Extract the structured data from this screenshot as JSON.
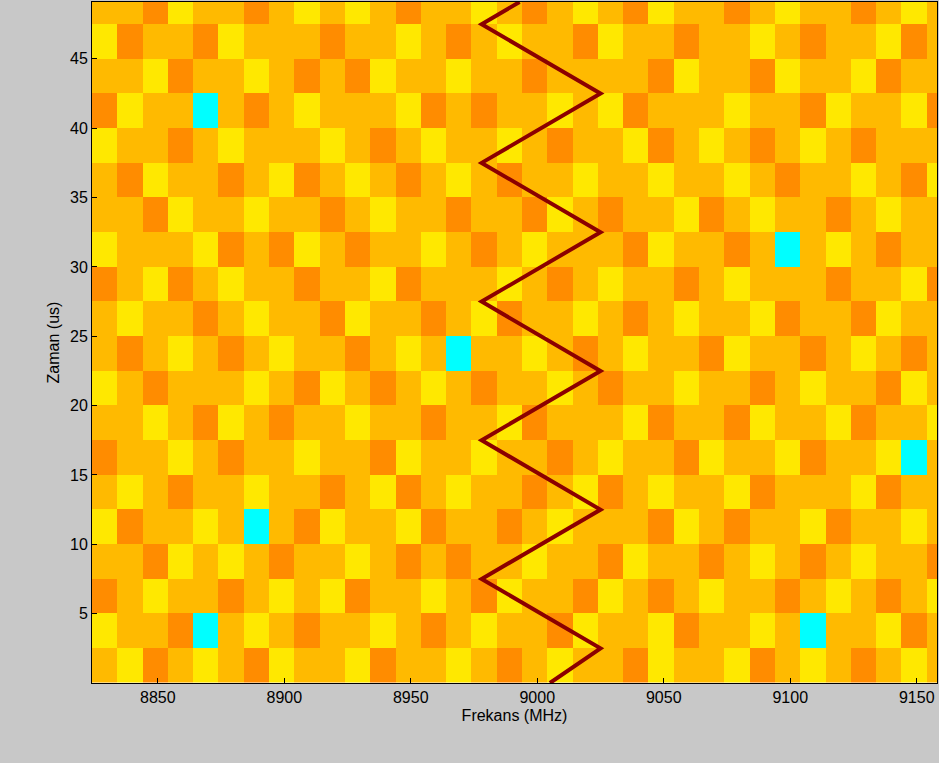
{
  "chart_data": {
    "type": "heatmap",
    "xlabel": "Frekans (MHz)",
    "ylabel": "Zaman (us)",
    "xlim": [
      8824,
      9158
    ],
    "ylim": [
      0,
      49.1
    ],
    "xticks": [
      8850,
      8900,
      8950,
      9000,
      9050,
      9100,
      9150
    ],
    "yticks": [
      5,
      10,
      15,
      20,
      25,
      30,
      35,
      40,
      45
    ],
    "zlim": [
      0,
      10
    ],
    "x": [
      8829,
      8839,
      8849,
      8859,
      8869,
      8879,
      8889,
      8899,
      8909,
      8919,
      8929,
      8939,
      8949,
      8959,
      8969,
      8979,
      8989,
      8999,
      9009,
      9019,
      9029,
      9039,
      9049,
      9059,
      9069,
      9079,
      9089,
      9099,
      9109,
      9119,
      9129,
      9139,
      9149,
      9159
    ],
    "y": [
      1.25,
      3.75,
      6.25,
      8.75,
      11.25,
      13.75,
      16.25,
      18.75,
      21.25,
      23.75,
      26.25,
      28.75,
      31.25,
      33.75,
      36.25,
      38.75,
      41.25,
      43.75,
      46.25,
      48.75
    ],
    "z": [
      [
        6,
        5,
        7,
        6,
        5,
        6,
        7,
        5,
        6,
        6,
        5,
        7,
        6,
        6,
        5,
        6,
        7,
        6,
        5,
        6,
        6,
        7,
        5,
        6,
        6,
        5,
        7,
        6,
        5,
        6,
        7,
        6,
        5,
        6
      ],
      [
        5,
        6,
        6,
        7,
        2,
        6,
        5,
        6,
        7,
        6,
        6,
        5,
        6,
        7,
        6,
        5,
        6,
        6,
        7,
        5,
        6,
        6,
        5,
        7,
        6,
        6,
        5,
        6,
        2,
        6,
        6,
        5,
        7,
        6
      ],
      [
        7,
        6,
        5,
        6,
        6,
        7,
        6,
        5,
        6,
        5,
        7,
        6,
        6,
        5,
        6,
        7,
        5,
        6,
        6,
        7,
        5,
        6,
        7,
        6,
        5,
        6,
        6,
        7,
        6,
        5,
        6,
        7,
        6,
        5
      ],
      [
        6,
        6,
        7,
        5,
        6,
        5,
        6,
        7,
        6,
        6,
        5,
        6,
        7,
        6,
        7,
        6,
        6,
        5,
        6,
        6,
        7,
        5,
        6,
        6,
        7,
        6,
        5,
        6,
        7,
        6,
        5,
        6,
        6,
        7
      ],
      [
        5,
        7,
        6,
        6,
        5,
        6,
        2,
        6,
        7,
        5,
        6,
        6,
        5,
        7,
        6,
        6,
        7,
        6,
        5,
        6,
        6,
        6,
        7,
        5,
        6,
        7,
        6,
        6,
        5,
        7,
        6,
        6,
        5,
        6
      ],
      [
        6,
        5,
        6,
        7,
        6,
        6,
        5,
        6,
        6,
        7,
        6,
        5,
        7,
        6,
        5,
        6,
        6,
        7,
        6,
        5,
        7,
        6,
        5,
        6,
        6,
        5,
        7,
        6,
        6,
        6,
        5,
        7,
        6,
        6
      ],
      [
        7,
        6,
        6,
        5,
        6,
        7,
        6,
        6,
        5,
        6,
        6,
        7,
        5,
        6,
        6,
        5,
        6,
        6,
        7,
        6,
        5,
        6,
        6,
        7,
        5,
        6,
        6,
        5,
        7,
        6,
        6,
        5,
        2,
        6
      ],
      [
        6,
        6,
        5,
        6,
        7,
        5,
        6,
        7,
        6,
        6,
        5,
        6,
        6,
        7,
        6,
        6,
        5,
        7,
        6,
        6,
        6,
        5,
        7,
        6,
        6,
        7,
        5,
        6,
        6,
        5,
        7,
        6,
        6,
        5
      ],
      [
        5,
        6,
        7,
        6,
        6,
        6,
        5,
        6,
        7,
        5,
        6,
        7,
        6,
        5,
        6,
        7,
        6,
        6,
        5,
        6,
        7,
        6,
        6,
        5,
        6,
        6,
        7,
        6,
        5,
        6,
        6,
        7,
        5,
        6
      ],
      [
        6,
        7,
        6,
        5,
        6,
        7,
        6,
        5,
        6,
        6,
        7,
        6,
        5,
        6,
        2,
        6,
        6,
        5,
        6,
        7,
        6,
        5,
        6,
        6,
        7,
        5,
        6,
        6,
        7,
        6,
        5,
        6,
        7,
        6
      ],
      [
        6,
        5,
        6,
        6,
        7,
        6,
        5,
        6,
        6,
        7,
        5,
        6,
        6,
        7,
        6,
        5,
        7,
        6,
        6,
        5,
        6,
        7,
        6,
        5,
        6,
        6,
        5,
        7,
        6,
        6,
        7,
        5,
        6,
        6
      ],
      [
        7,
        6,
        5,
        7,
        6,
        5,
        6,
        6,
        7,
        6,
        6,
        5,
        7,
        6,
        6,
        6,
        5,
        6,
        7,
        6,
        5,
        6,
        6,
        7,
        6,
        5,
        6,
        6,
        6,
        7,
        6,
        6,
        5,
        7
      ],
      [
        5,
        6,
        6,
        6,
        5,
        7,
        6,
        7,
        5,
        6,
        7,
        6,
        6,
        5,
        6,
        7,
        6,
        5,
        6,
        6,
        6,
        7,
        5,
        6,
        6,
        7,
        6,
        2,
        6,
        5,
        6,
        7,
        6,
        6
      ],
      [
        6,
        6,
        7,
        5,
        6,
        6,
        5,
        6,
        6,
        7,
        6,
        5,
        6,
        6,
        7,
        6,
        6,
        7,
        5,
        6,
        7,
        6,
        6,
        5,
        7,
        6,
        5,
        6,
        6,
        7,
        6,
        5,
        6,
        6
      ],
      [
        6,
        7,
        5,
        6,
        6,
        7,
        6,
        5,
        7,
        6,
        5,
        6,
        7,
        6,
        5,
        6,
        7,
        6,
        6,
        5,
        6,
        6,
        5,
        6,
        6,
        5,
        6,
        7,
        6,
        6,
        5,
        6,
        7,
        5
      ],
      [
        5,
        6,
        6,
        7,
        6,
        5,
        6,
        6,
        6,
        5,
        6,
        7,
        6,
        5,
        6,
        6,
        5,
        6,
        7,
        6,
        6,
        5,
        7,
        6,
        5,
        6,
        7,
        6,
        5,
        6,
        7,
        6,
        6,
        6
      ],
      [
        7,
        5,
        6,
        6,
        2,
        6,
        7,
        6,
        5,
        6,
        6,
        6,
        5,
        7,
        6,
        7,
        6,
        6,
        5,
        6,
        5,
        7,
        6,
        6,
        6,
        5,
        6,
        6,
        7,
        5,
        6,
        6,
        5,
        7
      ],
      [
        6,
        6,
        5,
        7,
        6,
        6,
        5,
        6,
        7,
        6,
        7,
        5,
        6,
        6,
        5,
        6,
        6,
        7,
        6,
        6,
        6,
        6,
        7,
        5,
        6,
        6,
        7,
        5,
        6,
        6,
        5,
        7,
        6,
        6
      ],
      [
        5,
        7,
        6,
        6,
        7,
        5,
        6,
        6,
        6,
        7,
        6,
        6,
        5,
        6,
        7,
        6,
        5,
        6,
        6,
        7,
        5,
        6,
        6,
        7,
        6,
        6,
        5,
        6,
        7,
        6,
        6,
        5,
        7,
        6
      ],
      [
        6,
        6,
        7,
        5,
        6,
        6,
        7,
        6,
        5,
        6,
        5,
        6,
        7,
        6,
        6,
        5,
        6,
        7,
        6,
        5,
        6,
        7,
        5,
        6,
        6,
        7,
        6,
        5,
        6,
        6,
        7,
        6,
        5,
        6
      ]
    ],
    "series": [
      {
        "type": "line",
        "color": "#8b0000",
        "x": [
          9005,
          9025,
          8978,
          9025,
          8978,
          9025,
          8978,
          9025,
          8978,
          9025,
          8978,
          8993
        ],
        "y": [
          0,
          2.5,
          7.5,
          12.5,
          17.5,
          22.5,
          27.5,
          32.5,
          37.5,
          42.5,
          47.5,
          49.1
        ]
      }
    ]
  }
}
